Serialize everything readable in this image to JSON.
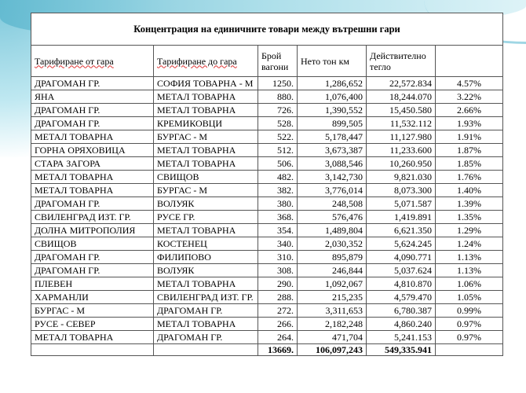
{
  "title": "Концентрация  на единичните товари между вътрешни гари",
  "headers": [
    "Тарифиране от гара",
    "Тарифиране до гара",
    "Брой вагони",
    "Нето тон км",
    "Действително тегло",
    ""
  ],
  "rows": [
    [
      "ДРАГОМАН ГР.",
      "СОФИЯ ТОВАРНА - М",
      "1250.",
      "1,286,652",
      "22,572.834",
      "4.57%"
    ],
    [
      "ЯНА",
      "МЕТАЛ ТОВАРНА",
      "880.",
      "1,076,400",
      "18,244.070",
      "3.22%"
    ],
    [
      "ДРАГОМАН ГР.",
      "МЕТАЛ ТОВАРНА",
      "726.",
      "1,390,552",
      "15,450.580",
      "2.66%"
    ],
    [
      "ДРАГОМАН ГР.",
      "КРЕМИКОВЦИ",
      "528.",
      "899,505",
      "11,532.112",
      "1.93%"
    ],
    [
      "МЕТАЛ ТОВАРНА",
      "БУРГАС - М",
      "522.",
      "5,178,447",
      "11,127.980",
      "1.91%"
    ],
    [
      "ГОРНА ОРЯХОВИЦА",
      "МЕТАЛ ТОВАРНА",
      "512.",
      "3,673,387",
      "11,233.600",
      "1.87%"
    ],
    [
      "СТАРА ЗАГОРА",
      "МЕТАЛ ТОВАРНА",
      "506.",
      "3,088,546",
      "10,260.950",
      "1.85%"
    ],
    [
      "МЕТАЛ ТОВАРНА",
      "СВИЩОВ",
      "482.",
      "3,142,730",
      "9,821.030",
      "1.76%"
    ],
    [
      "МЕТАЛ ТОВАРНА",
      "БУРГАС - М",
      "382.",
      "3,776,014",
      "8,073.300",
      "1.40%"
    ],
    [
      "ДРАГОМАН ГР.",
      "ВОЛУЯК",
      "380.",
      "248,508",
      "5,071.587",
      "1.39%"
    ],
    [
      "СВИЛЕНГРАД  ИЗТ. ГР.",
      "РУСЕ  ГР.",
      "368.",
      "576,476",
      "1,419.891",
      "1.35%"
    ],
    [
      "ДОЛНА МИТРОПОЛИЯ",
      "МЕТАЛ ТОВАРНА",
      "354.",
      "1,489,804",
      "6,621.350",
      "1.29%"
    ],
    [
      "СВИЩОВ",
      "КОСТЕНЕЦ",
      "340.",
      "2,030,352",
      "5,624.245",
      "1.24%"
    ],
    [
      "ДРАГОМАН ГР.",
      "ФИЛИПОВО",
      "310.",
      "895,879",
      "4,090.771",
      "1.13%"
    ],
    [
      "ДРАГОМАН ГР.",
      "ВОЛУЯК",
      "308.",
      "246,844",
      "5,037.624",
      "1.13%"
    ],
    [
      "ПЛЕВЕН",
      "МЕТАЛ ТОВАРНА",
      "290.",
      "1,092,067",
      "4,810.870",
      "1.06%"
    ],
    [
      "ХАРМАНЛИ",
      "СВИЛЕНГРАД  ИЗТ. ГР.",
      "288.",
      "215,235",
      "4,579.470",
      "1.05%"
    ],
    [
      "БУРГАС - М",
      "ДРАГОМАН ГР.",
      "272.",
      "3,311,653",
      "6,780.387",
      "0.99%"
    ],
    [
      "РУСЕ  - СЕВЕР",
      "МЕТАЛ ТОВАРНА",
      "266.",
      "2,182,248",
      "4,860.240",
      "0.97%"
    ],
    [
      "МЕТАЛ ТОВАРНА",
      "ДРАГОМАН ГР.",
      "264.",
      "471,704",
      "5,241.153",
      "0.97%"
    ]
  ],
  "totals": [
    "",
    "",
    "13669.",
    "106,097,243",
    "549,335.941",
    ""
  ]
}
